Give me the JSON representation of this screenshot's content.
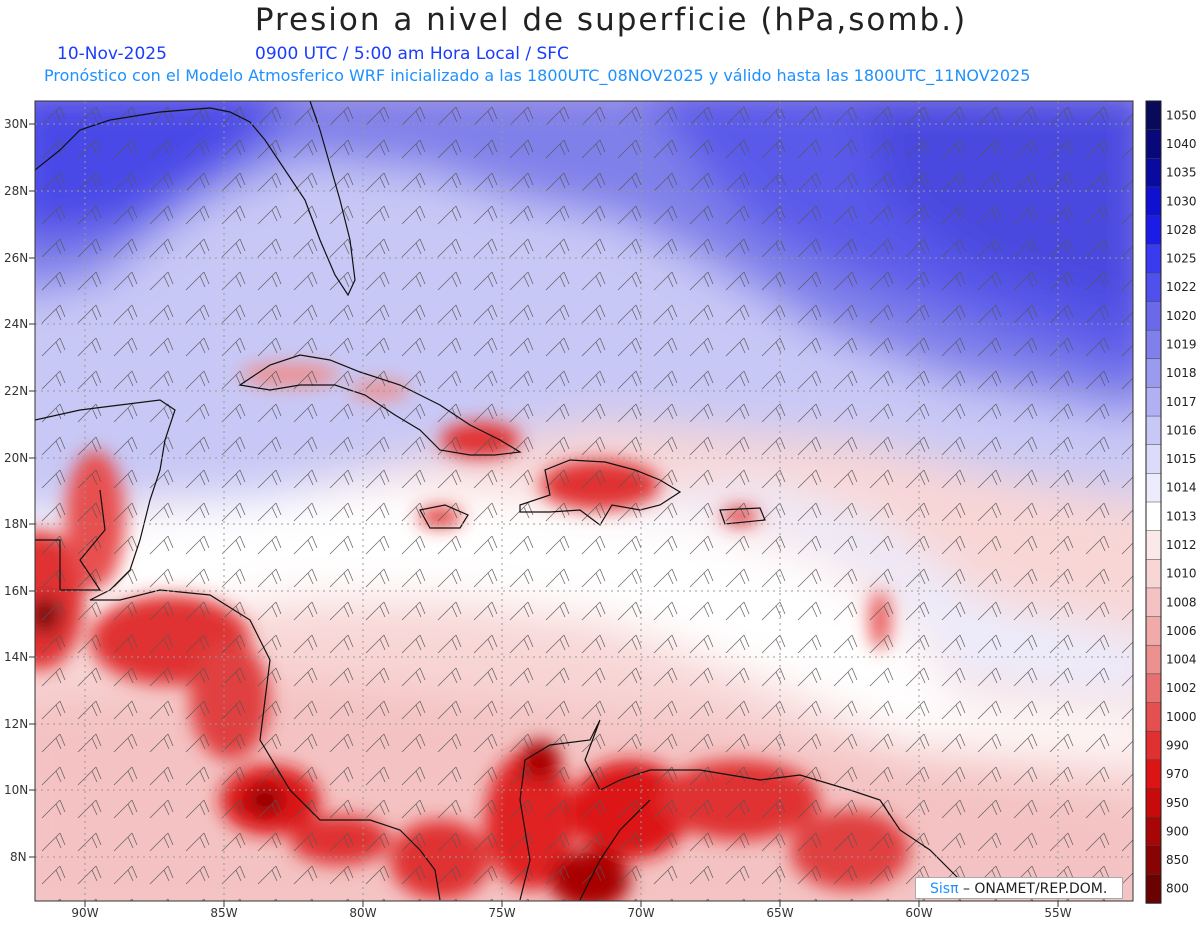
{
  "title": "Presion a nivel de superficie (hPa,somb.)",
  "date": "10-Nov-2025",
  "valid_time": "0900 UTC / 5:00 am Hora Local / SFC",
  "forecast_note": "Pronóstico con el Modelo Atmosferico WRF inicializado a las 1800UTC_08NOV2025 y válido hasta las  1800UTC_11NOV2025",
  "credit_brand": "Sisπ",
  "credit_text": "– ONAMET/REP.DOM.",
  "lat_labels": [
    "30N",
    "28N",
    "26N",
    "24N",
    "22N",
    "20N",
    "18N",
    "16N",
    "14N",
    "12N",
    "10N",
    "8N"
  ],
  "lon_labels": [
    "90W",
    "85W",
    "80W",
    "75W",
    "70W",
    "65W",
    "60W",
    "55W"
  ],
  "legend": {
    "levels": [
      "1050",
      "1040",
      "1035",
      "1030",
      "1028",
      "1025",
      "1022",
      "1020",
      "1019",
      "1018",
      "1017",
      "1016",
      "1015",
      "1014",
      "1013",
      "1012",
      "1010",
      "1008",
      "1006",
      "1004",
      "1002",
      "1000",
      "990",
      "970",
      "950",
      "900",
      "850",
      "800"
    ],
    "colors": [
      "#0a0a5a",
      "#08087a",
      "#0a0aa0",
      "#1010d0",
      "#1c1ce8",
      "#3a3af0",
      "#5050ec",
      "#6a6ae8",
      "#8080ea",
      "#9a9aee",
      "#b0b0f2",
      "#c8c8f6",
      "#dcdcfa",
      "#ececfc",
      "#ffffff",
      "#fbe9e9",
      "#f8d6d6",
      "#f4c2c2",
      "#f0aaaa",
      "#ec9090",
      "#e87070",
      "#e45050",
      "#e03030",
      "#dc1414",
      "#c80a0a",
      "#a80606",
      "#880404",
      "#6a0202"
    ]
  }
}
